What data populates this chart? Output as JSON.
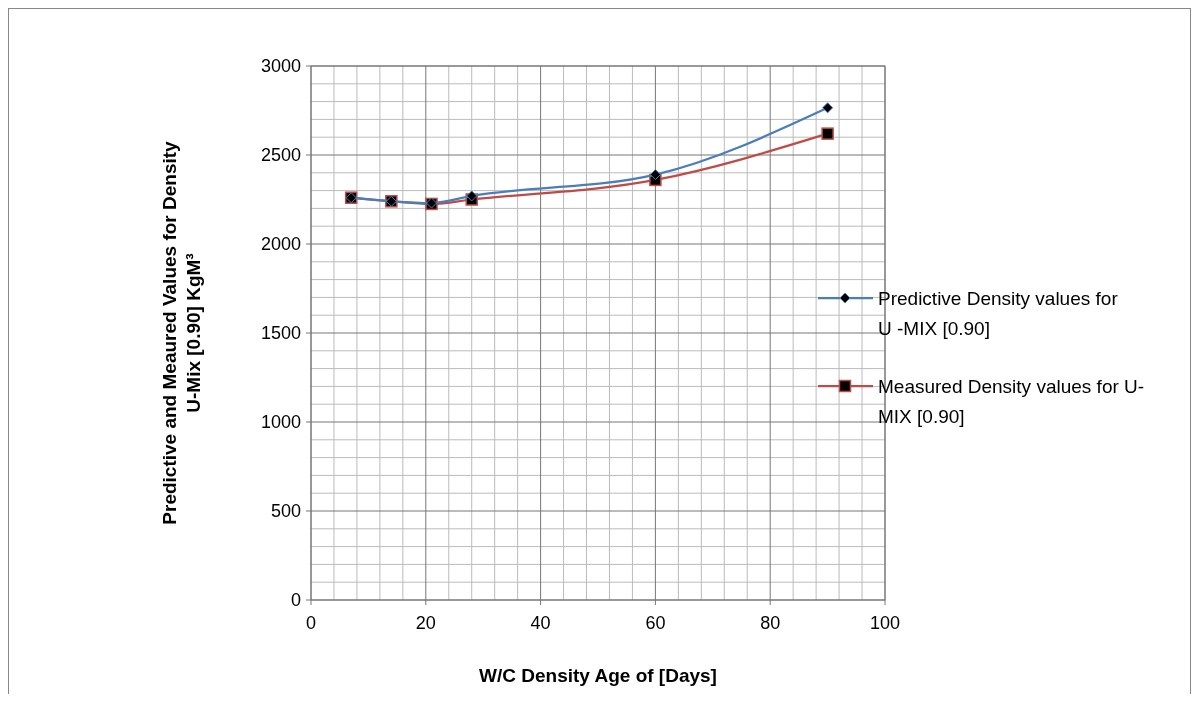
{
  "chart_data": {
    "type": "line",
    "xlabel": "W/C Density Age of [Days]",
    "ylabel": "Predictive and Meaured Values for Density U-Mix [0.90] KgM³",
    "x": [
      7,
      14,
      21,
      28,
      60,
      90
    ],
    "series": [
      {
        "name": "Predictive Density values for U -MIX [0.90]",
        "color": "#4a7ebb",
        "marker": "diamond",
        "values": [
          2260,
          2240,
          2230,
          2270,
          2390,
          2765
        ]
      },
      {
        "name": "Measured Density values for U- MIX [0.90]",
        "color": "#be4b48",
        "marker": "square",
        "values": [
          2260,
          2240,
          2225,
          2250,
          2360,
          2620
        ]
      }
    ],
    "xlim": [
      0,
      100
    ],
    "xticks": [
      0,
      20,
      40,
      60,
      80,
      100
    ],
    "ylim": [
      0,
      3000
    ],
    "yticks": [
      0,
      500,
      1000,
      1500,
      2000,
      2500,
      3000
    ],
    "grid": true,
    "legend": "right"
  }
}
